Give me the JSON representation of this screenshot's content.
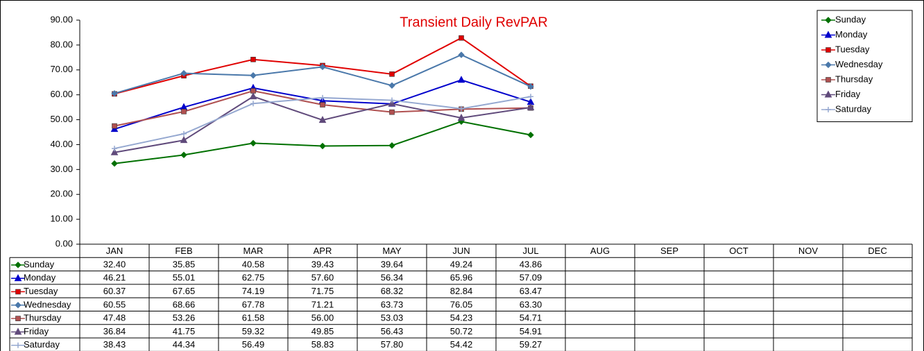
{
  "chart_data": {
    "type": "line",
    "title": "Transient Daily RevPAR",
    "categories": [
      "JAN",
      "FEB",
      "MAR",
      "APR",
      "MAY",
      "JUN",
      "JUL",
      "AUG",
      "SEP",
      "OCT",
      "NOV",
      "DEC"
    ],
    "ylim": [
      0,
      90
    ],
    "yticks": [
      {
        "value": 0,
        "label": "0.00"
      },
      {
        "value": 10,
        "label": "10.00"
      },
      {
        "value": 20,
        "label": "20.00"
      },
      {
        "value": 30,
        "label": "30.00"
      },
      {
        "value": 40,
        "label": "40.00"
      },
      {
        "value": 50,
        "label": "50.00"
      },
      {
        "value": 60,
        "label": "60.00"
      },
      {
        "value": 70,
        "label": "70.00"
      },
      {
        "value": 80,
        "label": "80.00"
      },
      {
        "value": 90,
        "label": "90.00"
      }
    ],
    "grid": false,
    "legend": "top-right",
    "series": [
      {
        "name": "Sunday",
        "color": "#007000",
        "marker": "diamond",
        "values": [
          32.4,
          35.85,
          40.58,
          39.43,
          39.64,
          49.24,
          43.86,
          null,
          null,
          null,
          null,
          null
        ],
        "value_labels": [
          "32.40",
          "35.85",
          "40.58",
          "39.43",
          "39.64",
          "49.24",
          "43.86",
          null,
          null,
          null,
          null,
          null
        ]
      },
      {
        "name": "Monday",
        "color": "#0000cc",
        "marker": "triangle",
        "values": [
          46.21,
          55.01,
          62.75,
          57.6,
          56.34,
          65.96,
          57.09,
          null,
          null,
          null,
          null,
          null
        ],
        "value_labels": [
          "46.21",
          "55.01",
          "62.75",
          "57.60",
          "56.34",
          "65.96",
          "57.09",
          null,
          null,
          null,
          null,
          null
        ]
      },
      {
        "name": "Tuesday",
        "color": "#e00000",
        "marker": "square",
        "values": [
          60.37,
          67.65,
          74.19,
          71.75,
          68.32,
          82.84,
          63.47,
          null,
          null,
          null,
          null,
          null
        ],
        "value_labels": [
          "60.37",
          "67.65",
          "74.19",
          "71.75",
          "68.32",
          "82.84",
          "63.47",
          null,
          null,
          null,
          null,
          null
        ]
      },
      {
        "name": "Wednesday",
        "color": "#4a78aa",
        "marker": "diamond",
        "values": [
          60.55,
          68.66,
          67.78,
          71.21,
          63.73,
          76.05,
          63.3,
          null,
          null,
          null,
          null,
          null
        ],
        "value_labels": [
          "60.55",
          "68.66",
          "67.78",
          "71.21",
          "63.73",
          "76.05",
          "63.30",
          null,
          null,
          null,
          null,
          null
        ]
      },
      {
        "name": "Thursday",
        "color": "#b05050",
        "marker": "square",
        "values": [
          47.48,
          53.26,
          61.58,
          56.0,
          53.03,
          54.23,
          54.71,
          null,
          null,
          null,
          null,
          null
        ],
        "value_labels": [
          "47.48",
          "53.26",
          "61.58",
          "56.00",
          "53.03",
          "54.23",
          "54.71",
          null,
          null,
          null,
          null,
          null
        ]
      },
      {
        "name": "Friday",
        "color": "#604a7b",
        "marker": "triangle",
        "values": [
          36.84,
          41.75,
          59.32,
          49.85,
          56.43,
          50.72,
          54.91,
          null,
          null,
          null,
          null,
          null
        ],
        "value_labels": [
          "36.84",
          "41.75",
          "59.32",
          "49.85",
          "56.43",
          "50.72",
          "54.91",
          null,
          null,
          null,
          null,
          null
        ]
      },
      {
        "name": "Saturday",
        "color": "#95a8d0",
        "marker": "plus",
        "values": [
          38.43,
          44.34,
          56.49,
          58.83,
          57.8,
          54.42,
          59.27,
          null,
          null,
          null,
          null,
          null
        ],
        "value_labels": [
          "38.43",
          "44.34",
          "56.49",
          "58.83",
          "57.80",
          "54.42",
          "59.27",
          null,
          null,
          null,
          null,
          null
        ]
      }
    ]
  }
}
